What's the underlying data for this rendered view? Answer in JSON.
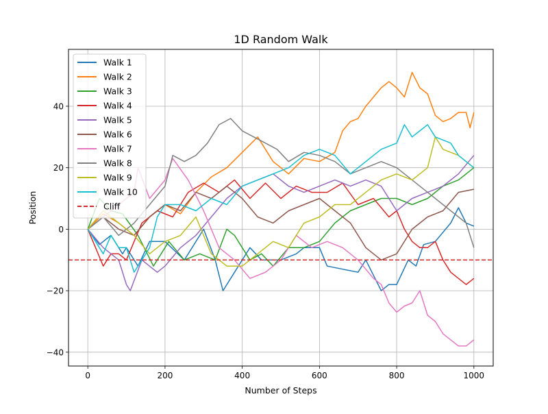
{
  "chart_data": {
    "type": "line",
    "title": "1D Random Walk",
    "xlabel": "Number of Steps",
    "ylabel": "Position",
    "xlim": [
      -50,
      1050
    ],
    "ylim": [
      -44.5,
      58.5
    ],
    "xticks": [
      0,
      200,
      400,
      600,
      800,
      1000
    ],
    "yticks": [
      -40,
      -20,
      0,
      20,
      40
    ],
    "grid": true,
    "legend_position": "top-left",
    "series": [
      {
        "name": "Walk 1",
        "color": "#1f77b4",
        "x": [
          0,
          30,
          60,
          90,
          100,
          130,
          160,
          200,
          250,
          300,
          330,
          350,
          380,
          420,
          450,
          500,
          540,
          560,
          600,
          620,
          660,
          700,
          720,
          760,
          780,
          800,
          830,
          850,
          870,
          900,
          940,
          960,
          980,
          1000
        ],
        "y": [
          0,
          -5,
          -2,
          -8,
          -6,
          -12,
          -4,
          -4,
          -10,
          0,
          -10,
          -20,
          -14,
          -6,
          -10,
          -10,
          -8,
          -6,
          -6,
          -12,
          -13,
          -14,
          -10,
          -20,
          -18,
          -18,
          -10,
          -12,
          -5,
          -4,
          2,
          7,
          2,
          1
        ]
      },
      {
        "name": "Walk 2",
        "color": "#ff7f0e",
        "x": [
          0,
          40,
          80,
          120,
          160,
          200,
          240,
          280,
          320,
          360,
          400,
          440,
          480,
          520,
          560,
          600,
          640,
          660,
          680,
          700,
          720,
          740,
          760,
          780,
          800,
          820,
          840,
          860,
          880,
          900,
          920,
          940,
          960,
          980,
          990,
          1000
        ],
        "y": [
          0,
          5,
          2,
          -2,
          4,
          8,
          5,
          12,
          17,
          20,
          25,
          30,
          22,
          18,
          23,
          22,
          25,
          32,
          35,
          36,
          40,
          43,
          46,
          48,
          46,
          43,
          51,
          46,
          44,
          37,
          35,
          36,
          38,
          38,
          33,
          38
        ]
      },
      {
        "name": "Walk 3",
        "color": "#2ca02c",
        "x": [
          0,
          30,
          60,
          90,
          130,
          170,
          210,
          250,
          290,
          330,
          360,
          380,
          400,
          420,
          450,
          480,
          520,
          560,
          600,
          640,
          680,
          720,
          760,
          800,
          840,
          880,
          920,
          960,
          1000
        ],
        "y": [
          0,
          10,
          6,
          5,
          -2,
          -12,
          -4,
          -10,
          -8,
          -10,
          0,
          -2,
          -6,
          -10,
          -8,
          -12,
          -6,
          -6,
          -4,
          2,
          6,
          8,
          10,
          10,
          8,
          10,
          14,
          16,
          20
        ]
      },
      {
        "name": "Walk 4",
        "color": "#d62728",
        "x": [
          0,
          20,
          40,
          60,
          80,
          100,
          140,
          180,
          220,
          260,
          300,
          340,
          380,
          420,
          460,
          500,
          540,
          580,
          620,
          660,
          700,
          740,
          780,
          800,
          820,
          840,
          860,
          880,
          900,
          920,
          940,
          960,
          980,
          1000
        ],
        "y": [
          0,
          -6,
          -12,
          -8,
          -8,
          -10,
          2,
          6,
          4,
          12,
          15,
          12,
          16,
          10,
          15,
          10,
          14,
          12,
          12,
          15,
          8,
          10,
          4,
          6,
          0,
          -4,
          -6,
          -6,
          -4,
          -10,
          -14,
          -16,
          -18,
          -16
        ]
      },
      {
        "name": "Walk 5",
        "color": "#9467bd",
        "x": [
          0,
          40,
          80,
          100,
          110,
          140,
          180,
          200,
          240,
          280,
          320,
          360,
          400,
          440,
          480,
          520,
          560,
          600,
          640,
          680,
          720,
          760,
          800,
          840,
          880,
          920,
          960,
          1000
        ],
        "y": [
          0,
          -6,
          -10,
          -18,
          -20,
          -10,
          -14,
          -12,
          -6,
          -2,
          4,
          10,
          14,
          16,
          18,
          14,
          12,
          14,
          16,
          14,
          16,
          14,
          6,
          10,
          12,
          14,
          18,
          24
        ]
      },
      {
        "name": "Walk 6",
        "color": "#8c564b",
        "x": [
          0,
          40,
          80,
          120,
          160,
          200,
          240,
          280,
          320,
          360,
          400,
          440,
          480,
          520,
          560,
          600,
          640,
          680,
          720,
          760,
          800,
          840,
          880,
          920,
          960,
          1000
        ],
        "y": [
          0,
          4,
          0,
          -2,
          4,
          8,
          6,
          12,
          10,
          14,
          10,
          4,
          2,
          6,
          8,
          10,
          6,
          2,
          -6,
          -10,
          -8,
          0,
          4,
          6,
          12,
          13
        ]
      },
      {
        "name": "Walk 7",
        "color": "#e377c2",
        "x": [
          0,
          40,
          80,
          120,
          130,
          160,
          200,
          220,
          260,
          300,
          340,
          380,
          420,
          460,
          500,
          540,
          580,
          620,
          660,
          700,
          740,
          760,
          780,
          800,
          820,
          840,
          860,
          880,
          900,
          920,
          940,
          960,
          980,
          1000
        ],
        "y": [
          0,
          4,
          8,
          12,
          20,
          10,
          16,
          23,
          16,
          6,
          -6,
          -10,
          -16,
          -14,
          -10,
          -2,
          -6,
          -4,
          -6,
          -10,
          -16,
          -18,
          -24,
          -27,
          -25,
          -24,
          -20,
          -28,
          -30,
          -34,
          -36,
          -38,
          -38,
          -36
        ]
      },
      {
        "name": "Walk 8",
        "color": "#7f7f7f",
        "x": [
          0,
          40,
          80,
          120,
          160,
          200,
          220,
          250,
          280,
          310,
          340,
          370,
          400,
          430,
          460,
          490,
          520,
          560,
          600,
          640,
          680,
          720,
          760,
          800,
          840,
          880,
          920,
          960,
          980,
          1000
        ],
        "y": [
          0,
          4,
          -2,
          2,
          8,
          14,
          24,
          22,
          24,
          28,
          34,
          36,
          32,
          30,
          28,
          26,
          22,
          25,
          24,
          22,
          18,
          20,
          22,
          20,
          16,
          12,
          8,
          4,
          2,
          -6
        ]
      },
      {
        "name": "Walk 9",
        "color": "#bcbd22",
        "x": [
          0,
          40,
          80,
          120,
          160,
          200,
          240,
          280,
          320,
          360,
          400,
          440,
          480,
          520,
          560,
          600,
          640,
          680,
          720,
          760,
          800,
          840,
          880,
          900,
          920,
          960,
          1000
        ],
        "y": [
          0,
          6,
          2,
          -2,
          -8,
          -4,
          -2,
          4,
          -8,
          -12,
          -12,
          -8,
          -4,
          -6,
          2,
          4,
          8,
          8,
          12,
          16,
          18,
          16,
          20,
          30,
          26,
          24,
          20
        ]
      },
      {
        "name": "Walk 10",
        "color": "#17becf",
        "x": [
          0,
          20,
          40,
          60,
          80,
          100,
          120,
          140,
          160,
          180,
          200,
          240,
          280,
          320,
          360,
          400,
          440,
          480,
          520,
          560,
          600,
          640,
          680,
          720,
          760,
          800,
          820,
          840,
          860,
          880,
          900,
          940,
          960,
          980,
          1000
        ],
        "y": [
          0,
          -4,
          -8,
          -2,
          -6,
          -6,
          -14,
          -10,
          -6,
          4,
          8,
          8,
          6,
          10,
          8,
          14,
          16,
          18,
          20,
          24,
          26,
          24,
          18,
          22,
          26,
          28,
          34,
          30,
          32,
          34,
          30,
          28,
          24,
          22,
          20
        ]
      }
    ],
    "hlines": [
      {
        "name": "Cliff",
        "y": -10,
        "color": "#d62728",
        "style": "dashed"
      }
    ]
  }
}
